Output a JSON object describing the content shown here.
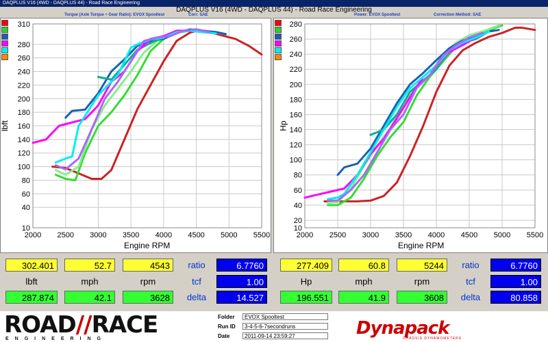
{
  "window": {
    "title": "DAQPLUS V16 (4WD - DAQPLUS 44) - Road Race Engineering",
    "main_title": "DAQPLUS V16 (4WD - DAQPLUS 44) - Road Race Engineering"
  },
  "left_header": {
    "torque_label": "Torque (Axle Torque ÷ Gear Ratio): EVOX Spooltest",
    "corr": "Corr: SAE"
  },
  "right_header": {
    "power_label": "Power: EVOX Spooltest",
    "correction": "Correction Method: SAE"
  },
  "swatches": [
    "#ff0000",
    "#33cc33",
    "#1a5fb4",
    "#ff00ff",
    "#00eeee",
    "#ff8800"
  ],
  "chart_data": [
    {
      "type": "line",
      "xlabel": "Engine RPM",
      "ylabel": "lbft",
      "xlim": [
        2000,
        5500
      ],
      "ylim": [
        10,
        310
      ],
      "xticks": [
        "2000",
        "2500",
        "3000",
        "3500",
        "4000",
        "4500",
        "5000",
        "5500"
      ],
      "yticks": [
        "10",
        "40",
        "60",
        "80",
        "100",
        "120",
        "140",
        "160",
        "180",
        "200",
        "220",
        "240",
        "260",
        "280",
        "310"
      ],
      "series": [
        {
          "color": "#cc2222",
          "x": [
            2300,
            2500,
            2700,
            2900,
            3050,
            3200,
            3400,
            3600,
            3800,
            4000,
            4200,
            4400,
            4500,
            4700,
            4900,
            5100,
            5300,
            5500
          ],
          "y": [
            100,
            98,
            90,
            82,
            82,
            95,
            140,
            185,
            220,
            255,
            285,
            297,
            300,
            298,
            293,
            288,
            278,
            265
          ]
        },
        {
          "color": "#33dd33",
          "x": [
            2350,
            2500,
            2650,
            2800,
            3000,
            3200,
            3400,
            3600,
            3800,
            4000,
            4200,
            4400,
            4600,
            4800,
            4950
          ],
          "y": [
            88,
            82,
            80,
            120,
            160,
            180,
            205,
            235,
            270,
            288,
            297,
            300,
            298,
            298,
            295
          ]
        },
        {
          "color": "#88ee88",
          "x": [
            2350,
            2500,
            2700,
            2900,
            3100,
            3300,
            3500,
            3700,
            3900,
            4100,
            4300,
            4500,
            4700,
            4950
          ],
          "y": [
            95,
            88,
            100,
            155,
            190,
            215,
            240,
            268,
            285,
            292,
            300,
            302,
            299,
            295
          ]
        },
        {
          "color": "#1a5fb4",
          "x": [
            2500,
            2600,
            2800,
            3000,
            3200,
            3400,
            3600,
            3800,
            4000,
            4200,
            4400,
            4600,
            4800,
            4950
          ],
          "y": [
            172,
            182,
            184,
            208,
            240,
            258,
            278,
            285,
            288,
            297,
            302,
            300,
            298,
            295
          ]
        },
        {
          "color": "#11aa99",
          "x": [
            3000,
            3200,
            3400,
            3600,
            3800,
            4000,
            4200,
            4400,
            4600,
            4800
          ],
          "y": [
            232,
            228,
            250,
            272,
            282,
            290,
            298,
            300,
            299,
            296
          ]
        },
        {
          "color": "#ff00ff",
          "x": [
            2000,
            2200,
            2400,
            2600,
            2800,
            3000,
            3200,
            3400,
            3600,
            3800,
            4000,
            4200,
            4400,
            4600,
            4800
          ],
          "y": [
            135,
            140,
            160,
            165,
            170,
            190,
            225,
            240,
            270,
            288,
            292,
            300,
            300,
            298,
            296
          ]
        },
        {
          "color": "#00eeee",
          "x": [
            2350,
            2500,
            2600,
            2700,
            3000,
            3300,
            3500,
            3600,
            3800,
            4000,
            4200,
            4400,
            4600,
            4800
          ],
          "y": [
            106,
            112,
            115,
            160,
            205,
            235,
            275,
            280,
            287,
            290,
            298,
            300,
            298,
            296
          ]
        },
        {
          "color": "#aa66ff",
          "x": [
            2350,
            2500,
            2700,
            2900,
            3100,
            3300,
            3500,
            3700,
            3900,
            4100,
            4300,
            4500,
            4700
          ],
          "y": [
            102,
            96,
            112,
            155,
            200,
            225,
            255,
            285,
            290,
            292,
            300,
            302,
            298
          ]
        }
      ]
    },
    {
      "type": "line",
      "xlabel": "Engine RPM",
      "ylabel": "Hp",
      "xlim": [
        2000,
        5500
      ],
      "ylim": [
        10,
        280
      ],
      "xticks": [
        "2000",
        "2500",
        "3000",
        "3500",
        "4000",
        "4500",
        "5000",
        "5500"
      ],
      "yticks": [
        "10",
        "20",
        "40",
        "60",
        "80",
        "100",
        "120",
        "140",
        "160",
        "180",
        "200",
        "220",
        "240",
        "260",
        "280"
      ],
      "series": [
        {
          "color": "#cc2222",
          "x": [
            2300,
            2600,
            2800,
            3000,
            3200,
            3400,
            3600,
            3800,
            4000,
            4200,
            4400,
            4600,
            4800,
            5000,
            5200,
            5300,
            5500
          ],
          "y": [
            45,
            45,
            45,
            46,
            52,
            70,
            105,
            145,
            190,
            225,
            245,
            255,
            263,
            268,
            275,
            275,
            272
          ]
        },
        {
          "color": "#33dd33",
          "x": [
            2350,
            2500,
            2700,
            2900,
            3100,
            3300,
            3500,
            3700,
            3900,
            4100,
            4300,
            4500,
            4700,
            4900,
            5000
          ],
          "y": [
            40,
            40,
            50,
            75,
            105,
            130,
            150,
            185,
            210,
            230,
            250,
            258,
            268,
            275,
            278
          ]
        },
        {
          "color": "#88ee88",
          "x": [
            2350,
            2500,
            2700,
            2900,
            3100,
            3300,
            3500,
            3700,
            3900,
            4100,
            4300,
            4500,
            4700,
            4950
          ],
          "y": [
            43,
            44,
            62,
            92,
            118,
            142,
            175,
            195,
            212,
            240,
            255,
            265,
            270,
            278
          ]
        },
        {
          "color": "#1a5fb4",
          "x": [
            2500,
            2600,
            2800,
            3000,
            3200,
            3400,
            3600,
            3800,
            4000,
            4200,
            4400,
            4600,
            4800,
            4950
          ],
          "y": [
            80,
            90,
            95,
            115,
            145,
            175,
            200,
            215,
            232,
            248,
            258,
            263,
            270,
            272
          ]
        },
        {
          "color": "#11aa99",
          "x": [
            3000,
            3200,
            3400,
            3600,
            3800,
            4000,
            4200,
            4400,
            4600,
            4800
          ],
          "y": [
            133,
            140,
            160,
            190,
            205,
            220,
            245,
            255,
            260,
            270
          ]
        },
        {
          "color": "#ff00ff",
          "x": [
            2000,
            2200,
            2400,
            2600,
            2800,
            3000,
            3200,
            3400,
            3600,
            3800,
            4000,
            4200,
            4400,
            4600,
            4800
          ],
          "y": [
            50,
            54,
            58,
            62,
            80,
            108,
            128,
            155,
            183,
            210,
            225,
            243,
            252,
            262,
            270
          ]
        },
        {
          "color": "#00eeee",
          "x": [
            2350,
            2500,
            2600,
            2800,
            3000,
            3200,
            3400,
            3600,
            3800,
            4000,
            4200,
            4400,
            4600,
            4800
          ],
          "y": [
            48,
            50,
            55,
            80,
            110,
            140,
            170,
            195,
            210,
            225,
            245,
            255,
            262,
            270
          ]
        },
        {
          "color": "#aa66ff",
          "x": [
            2350,
            2500,
            2700,
            2900,
            3100,
            3300,
            3500,
            3700,
            3900,
            4100,
            4300,
            4500,
            4700
          ],
          "y": [
            46,
            46,
            60,
            80,
            110,
            140,
            160,
            195,
            212,
            238,
            252,
            262,
            268
          ]
        }
      ]
    }
  ],
  "left_stats": {
    "torque_val": "302.401",
    "mph_top": "52.7",
    "rpm_top": "4543",
    "unit1": "lbft",
    "unit2": "mph",
    "unit3": "rpm",
    "torque_low": "287.874",
    "mph_low": "42.1",
    "rpm_low": "3628",
    "ratio_label": "ratio",
    "tcf_label": "tcf",
    "delta_label": "delta",
    "ratio_val": "6.7760",
    "tcf_val": "1.00",
    "delta_val": "14.527"
  },
  "right_stats": {
    "hp_val": "277.409",
    "mph_top": "60.8",
    "rpm_top": "5244",
    "unit1": "Hp",
    "unit2": "mph",
    "unit3": "rpm",
    "hp_low": "196.551",
    "mph_low": "41.9",
    "rpm_low": "3608",
    "ratio_label": "ratio",
    "tcf_label": "tcf",
    "delta_label": "delta",
    "ratio_val": "6.7760",
    "tcf_val": "1.00",
    "delta_val": "80.858"
  },
  "footer": {
    "logo_road": "ROAD",
    "logo_race": "RACE",
    "logo_sub": "ENGINEERING",
    "folder_label": "Folder",
    "folder_val": "EVOX Spooltest",
    "runid_label": "Run ID",
    "runid_val": "3-4-5-6-7secondruns",
    "date_label": "Date",
    "date_val": "2011-09-14 23:59:27",
    "dyn_logo": "Dynapack",
    "dyn_sub": "CHASSIS DYNAMOMETERS"
  }
}
